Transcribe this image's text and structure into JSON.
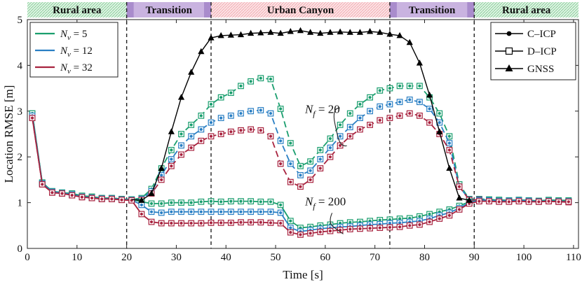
{
  "chart_data": {
    "type": "line",
    "xlabel": "Time [s]",
    "ylabel": "Location RMSE [m]",
    "xlim": [
      0,
      111
    ],
    "ylim": [
      0,
      5
    ],
    "xticks": [
      0,
      10,
      20,
      30,
      40,
      50,
      60,
      70,
      80,
      90,
      100,
      110
    ],
    "yticks": [
      0,
      1,
      2,
      3,
      4,
      5
    ],
    "vlines": [
      20,
      37,
      73,
      90
    ],
    "regions": [
      {
        "label": "Rural area",
        "x0": 0,
        "x1": 20,
        "color": "#00a651"
      },
      {
        "label": "Transition",
        "x0": 20,
        "x1": 37,
        "color": "#7b4fa0"
      },
      {
        "label": "Urban Canyon",
        "x0": 37,
        "x1": 73,
        "color": "#e8474f"
      },
      {
        "label": "Transition",
        "x0": 73,
        "x1": 90,
        "color": "#7b4fa0"
      },
      {
        "label": "Rural area",
        "x0": 90,
        "x1": 111,
        "color": "#00a651"
      }
    ],
    "colors": {
      "nv5": "#1a9e6e",
      "nv12": "#2a7fc4",
      "nv32": "#a8233f",
      "gnss": "#000000"
    },
    "legend_left": [
      {
        "sym": "N",
        "sub": "v",
        "eq": " = 5",
        "color": "#1a9e6e"
      },
      {
        "sym": "N",
        "sub": "v",
        "eq": " = 12",
        "color": "#2a7fc4"
      },
      {
        "sym": "N",
        "sub": "v",
        "eq": " = 32",
        "color": "#a8233f"
      }
    ],
    "legend_right": [
      {
        "label": "C–ICP",
        "marker": "dot"
      },
      {
        "label": "D–ICP",
        "marker": "square"
      },
      {
        "label": "GNSS",
        "marker": "triangle"
      }
    ],
    "annotations": [
      {
        "sym": "N",
        "sub": "f",
        "eq": " = 20",
        "x": 61,
        "y": 3.05
      },
      {
        "sym": "N",
        "sub": "f",
        "eq": " = 200",
        "x": 61,
        "y": 1.03
      }
    ],
    "x": [
      1,
      3,
      5,
      7,
      9,
      11,
      13,
      15,
      17,
      19,
      21,
      23,
      25,
      27,
      29,
      31,
      33,
      35,
      37,
      39,
      41,
      43,
      45,
      47,
      49,
      51,
      53,
      55,
      57,
      59,
      61,
      63,
      65,
      67,
      69,
      71,
      73,
      75,
      77,
      79,
      81,
      83,
      85,
      87,
      89,
      91,
      93,
      95,
      97,
      99,
      101,
      103,
      105,
      107,
      109
    ],
    "gnss_x": [
      23,
      25,
      27,
      29,
      31,
      33,
      35,
      37,
      39,
      41,
      43,
      45,
      47,
      49,
      51,
      53,
      55,
      57,
      59,
      61,
      63,
      65,
      67,
      69,
      71,
      73,
      75,
      77,
      79,
      81,
      83,
      85,
      87,
      89
    ],
    "gnss": [
      1.05,
      1.2,
      1.75,
      2.55,
      3.3,
      3.85,
      4.3,
      4.6,
      4.65,
      4.66,
      4.67,
      4.7,
      4.71,
      4.72,
      4.7,
      4.74,
      4.76,
      4.72,
      4.7,
      4.72,
      4.73,
      4.72,
      4.72,
      4.74,
      4.72,
      4.68,
      4.65,
      4.5,
      4.05,
      3.35,
      2.55,
      1.75,
      1.1,
      1.05
    ],
    "series": [
      {
        "name": "Nv=5, Nf=20",
        "style": "dashed",
        "color": "#1a9e6e",
        "values": [
          2.95,
          1.44,
          1.25,
          1.22,
          1.2,
          1.15,
          1.13,
          1.1,
          1.1,
          1.08,
          1.07,
          1.1,
          1.3,
          1.75,
          2.15,
          2.5,
          2.7,
          2.9,
          3.15,
          3.3,
          3.4,
          3.55,
          3.65,
          3.72,
          3.7,
          3.05,
          2.3,
          1.8,
          1.9,
          2.15,
          2.4,
          2.7,
          2.95,
          3.15,
          3.3,
          3.45,
          3.5,
          3.55,
          3.55,
          3.55,
          3.3,
          2.95,
          2.45,
          1.4,
          1.08,
          1.08,
          1.07,
          1.06,
          1.05,
          1.06,
          1.05,
          1.04,
          1.05,
          1.04,
          1.03
        ]
      },
      {
        "name": "Nv=12, Nf=20",
        "style": "dashed",
        "color": "#2a7fc4",
        "values": [
          2.9,
          1.42,
          1.24,
          1.21,
          1.18,
          1.13,
          1.11,
          1.09,
          1.09,
          1.07,
          1.06,
          1.08,
          1.25,
          1.6,
          1.95,
          2.25,
          2.45,
          2.6,
          2.75,
          2.85,
          2.9,
          2.95,
          3.0,
          3.02,
          2.95,
          2.35,
          1.85,
          1.6,
          1.7,
          1.95,
          2.2,
          2.45,
          2.65,
          2.85,
          3.0,
          3.1,
          3.15,
          3.2,
          3.25,
          3.2,
          3.05,
          2.75,
          2.3,
          1.35,
          1.07,
          1.07,
          1.06,
          1.05,
          1.04,
          1.05,
          1.04,
          1.03,
          1.04,
          1.03,
          1.02
        ]
      },
      {
        "name": "Nv=32, Nf=20",
        "style": "dashed",
        "color": "#a8233f",
        "values": [
          2.85,
          1.4,
          1.22,
          1.2,
          1.16,
          1.12,
          1.1,
          1.08,
          1.08,
          1.06,
          1.05,
          1.06,
          1.2,
          1.5,
          1.8,
          2.05,
          2.2,
          2.35,
          2.45,
          2.5,
          2.55,
          2.58,
          2.6,
          2.58,
          2.45,
          1.85,
          1.45,
          1.35,
          1.5,
          1.75,
          2.0,
          2.25,
          2.45,
          2.6,
          2.7,
          2.8,
          2.85,
          2.9,
          2.95,
          2.9,
          2.75,
          2.5,
          2.15,
          1.35,
          1.06,
          1.06,
          1.05,
          1.04,
          1.03,
          1.04,
          1.03,
          1.02,
          1.03,
          1.02,
          1.01
        ]
      },
      {
        "name": "Nv=5, Nf=200",
        "style": "solid",
        "color": "#1a9e6e",
        "values": [
          2.95,
          1.44,
          1.25,
          1.22,
          1.2,
          1.15,
          1.13,
          1.1,
          1.1,
          1.08,
          1.07,
          1.02,
          0.98,
          0.98,
          1.0,
          1.0,
          1.0,
          1.02,
          1.03,
          1.02,
          1.03,
          1.03,
          1.03,
          1.02,
          1.02,
          0.95,
          0.6,
          0.45,
          0.47,
          0.5,
          0.52,
          0.55,
          0.57,
          0.58,
          0.6,
          0.62,
          0.63,
          0.65,
          0.66,
          0.7,
          0.75,
          0.8,
          0.85,
          0.93,
          1.02,
          1.05,
          1.06,
          1.06,
          1.05,
          1.06,
          1.05,
          1.04,
          1.06,
          1.05,
          1.05
        ]
      },
      {
        "name": "Nv=12, Nf=200",
        "style": "solid",
        "color": "#2a7fc4",
        "values": [
          2.9,
          1.42,
          1.24,
          1.21,
          1.18,
          1.13,
          1.11,
          1.09,
          1.09,
          1.07,
          1.06,
          0.95,
          0.8,
          0.78,
          0.8,
          0.8,
          0.8,
          0.8,
          0.8,
          0.8,
          0.8,
          0.8,
          0.8,
          0.8,
          0.8,
          0.78,
          0.45,
          0.37,
          0.4,
          0.43,
          0.45,
          0.47,
          0.48,
          0.5,
          0.52,
          0.53,
          0.55,
          0.56,
          0.58,
          0.6,
          0.65,
          0.72,
          0.78,
          0.88,
          1.0,
          1.05,
          1.05,
          1.04,
          1.04,
          1.05,
          1.04,
          1.03,
          1.04,
          1.03,
          1.03
        ]
      },
      {
        "name": "Nv=32, Nf=200",
        "style": "solid",
        "color": "#a8233f",
        "values": [
          2.85,
          1.4,
          1.22,
          1.2,
          1.16,
          1.12,
          1.1,
          1.08,
          1.08,
          1.06,
          1.05,
          0.75,
          0.58,
          0.55,
          0.55,
          0.55,
          0.55,
          0.55,
          0.56,
          0.56,
          0.56,
          0.57,
          0.57,
          0.57,
          0.56,
          0.55,
          0.35,
          0.3,
          0.33,
          0.36,
          0.38,
          0.4,
          0.42,
          0.43,
          0.44,
          0.45,
          0.46,
          0.47,
          0.5,
          0.52,
          0.58,
          0.65,
          0.72,
          0.85,
          0.98,
          1.03,
          1.03,
          1.02,
          1.02,
          1.03,
          1.02,
          1.02,
          1.03,
          1.02,
          1.02
        ]
      }
    ]
  }
}
